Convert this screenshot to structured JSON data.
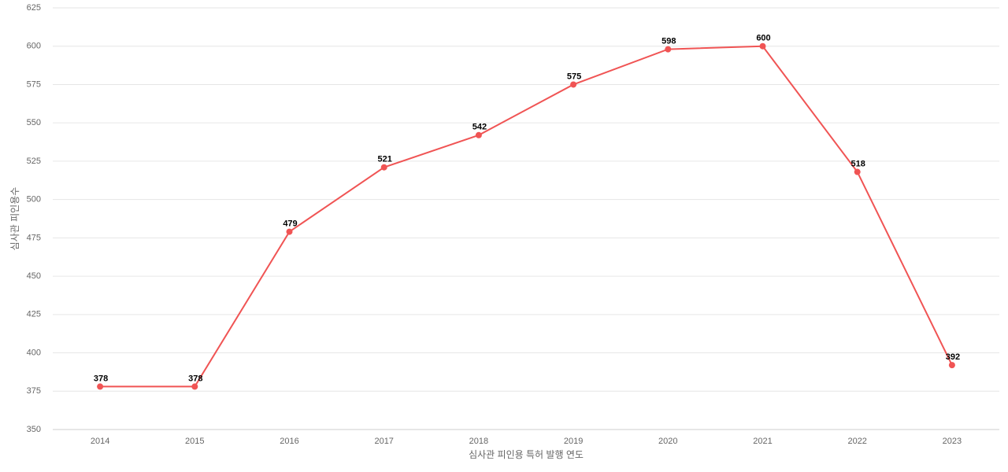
{
  "chart_data": {
    "type": "line",
    "x_label": "심사관 피인용 특허 발행 연도",
    "y_label": "심사관 피인용수",
    "categories": [
      "2014",
      "2015",
      "2016",
      "2017",
      "2018",
      "2019",
      "2020",
      "2021",
      "2022",
      "2023"
    ],
    "values": [
      378,
      378,
      479,
      521,
      542,
      575,
      598,
      600,
      518,
      392
    ],
    "color": "#f05454",
    "ylim": [
      350,
      625
    ],
    "yticks": [
      350,
      375,
      400,
      425,
      450,
      475,
      500,
      525,
      550,
      575,
      600,
      625
    ],
    "grid": true
  }
}
